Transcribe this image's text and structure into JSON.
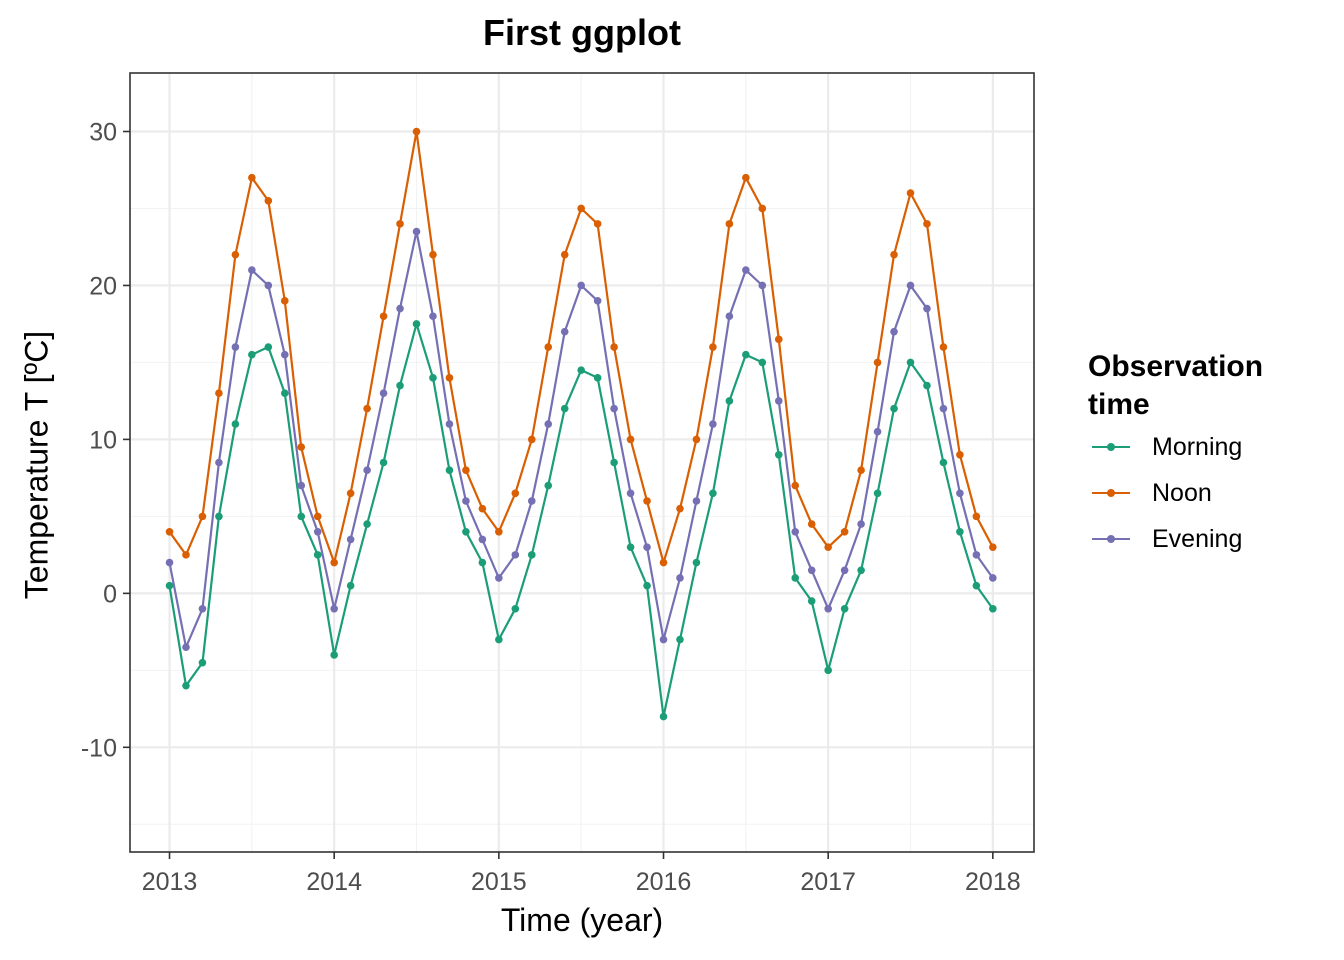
{
  "chart_data": {
    "type": "line",
    "title": "First ggplot",
    "xlabel": "Time (year)",
    "ylabel": "Temperature T [ºC]",
    "xlim": [
      2012.76,
      2018.25
    ],
    "ylim": [
      -16.8,
      33.8
    ],
    "x_ticks": [
      2013,
      2014,
      2015,
      2016,
      2017,
      2018
    ],
    "y_ticks": [
      -10,
      0,
      10,
      20,
      30
    ],
    "grid": true,
    "legend_position": "right",
    "legend_title": "Observation time",
    "markers": true,
    "series": [
      {
        "name": "Morning",
        "color": "#1B9E77",
        "x": [
          2013.0,
          2013.1,
          2013.2,
          2013.3,
          2013.4,
          2013.5,
          2013.6,
          2013.7,
          2013.8,
          2013.9,
          2014.0,
          2014.1,
          2014.2,
          2014.3,
          2014.4,
          2014.5,
          2014.6,
          2014.7,
          2014.8,
          2014.9,
          2015.0,
          2015.1,
          2015.2,
          2015.3,
          2015.4,
          2015.5,
          2015.6,
          2015.7,
          2015.8,
          2015.9,
          2016.0,
          2016.1,
          2016.2,
          2016.3,
          2016.4,
          2016.5,
          2016.6,
          2016.7,
          2016.8,
          2016.9,
          2017.0,
          2017.1,
          2017.2,
          2017.3,
          2017.4,
          2017.5,
          2017.6,
          2017.7,
          2017.8,
          2017.9,
          2018.0
        ],
        "y": [
          0.5,
          -6.0,
          -4.5,
          5.0,
          11.0,
          15.5,
          16.0,
          13.0,
          5.0,
          2.5,
          -4.0,
          0.5,
          4.5,
          8.5,
          13.5,
          17.5,
          14.0,
          8.0,
          4.0,
          2.0,
          -3.0,
          -1.0,
          2.5,
          7.0,
          12.0,
          14.5,
          14.0,
          8.5,
          3.0,
          0.5,
          -8.0,
          -3.0,
          2.0,
          6.5,
          12.5,
          15.5,
          15.0,
          9.0,
          1.0,
          -0.5,
          -5.0,
          -1.0,
          1.5,
          6.5,
          12.0,
          15.0,
          13.5,
          8.5,
          4.0,
          0.5,
          -1.0
        ]
      },
      {
        "name": "Noon",
        "color": "#D95F02",
        "x": [
          2013.0,
          2013.1,
          2013.2,
          2013.3,
          2013.4,
          2013.5,
          2013.6,
          2013.7,
          2013.8,
          2013.9,
          2014.0,
          2014.1,
          2014.2,
          2014.3,
          2014.4,
          2014.5,
          2014.6,
          2014.7,
          2014.8,
          2014.9,
          2015.0,
          2015.1,
          2015.2,
          2015.3,
          2015.4,
          2015.5,
          2015.6,
          2015.7,
          2015.8,
          2015.9,
          2016.0,
          2016.1,
          2016.2,
          2016.3,
          2016.4,
          2016.5,
          2016.6,
          2016.7,
          2016.8,
          2016.9,
          2017.0,
          2017.1,
          2017.2,
          2017.3,
          2017.4,
          2017.5,
          2017.6,
          2017.7,
          2017.8,
          2017.9,
          2018.0
        ],
        "y": [
          4.0,
          2.5,
          5.0,
          13.0,
          22.0,
          27.0,
          25.5,
          19.0,
          9.5,
          5.0,
          2.0,
          6.5,
          12.0,
          18.0,
          24.0,
          30.0,
          22.0,
          14.0,
          8.0,
          5.5,
          4.0,
          6.5,
          10.0,
          16.0,
          22.0,
          25.0,
          24.0,
          16.0,
          10.0,
          6.0,
          2.0,
          5.5,
          10.0,
          16.0,
          24.0,
          27.0,
          25.0,
          16.5,
          7.0,
          4.5,
          3.0,
          4.0,
          8.0,
          15.0,
          22.0,
          26.0,
          24.0,
          16.0,
          9.0,
          5.0,
          3.0
        ]
      },
      {
        "name": "Evening",
        "color": "#7570B3",
        "x": [
          2013.0,
          2013.1,
          2013.2,
          2013.3,
          2013.4,
          2013.5,
          2013.6,
          2013.7,
          2013.8,
          2013.9,
          2014.0,
          2014.1,
          2014.2,
          2014.3,
          2014.4,
          2014.5,
          2014.6,
          2014.7,
          2014.8,
          2014.9,
          2015.0,
          2015.1,
          2015.2,
          2015.3,
          2015.4,
          2015.5,
          2015.6,
          2015.7,
          2015.8,
          2015.9,
          2016.0,
          2016.1,
          2016.2,
          2016.3,
          2016.4,
          2016.5,
          2016.6,
          2016.7,
          2016.8,
          2016.9,
          2017.0,
          2017.1,
          2017.2,
          2017.3,
          2017.4,
          2017.5,
          2017.6,
          2017.7,
          2017.8,
          2017.9,
          2018.0
        ],
        "y": [
          2.0,
          -3.5,
          -1.0,
          8.5,
          16.0,
          21.0,
          20.0,
          15.5,
          7.0,
          4.0,
          -1.0,
          3.5,
          8.0,
          13.0,
          18.5,
          23.5,
          18.0,
          11.0,
          6.0,
          3.5,
          1.0,
          2.5,
          6.0,
          11.0,
          17.0,
          20.0,
          19.0,
          12.0,
          6.5,
          3.0,
          -3.0,
          1.0,
          6.0,
          11.0,
          18.0,
          21.0,
          20.0,
          12.5,
          4.0,
          1.5,
          -1.0,
          1.5,
          4.5,
          10.5,
          17.0,
          20.0,
          18.5,
          12.0,
          6.5,
          2.5,
          1.0
        ]
      }
    ]
  }
}
